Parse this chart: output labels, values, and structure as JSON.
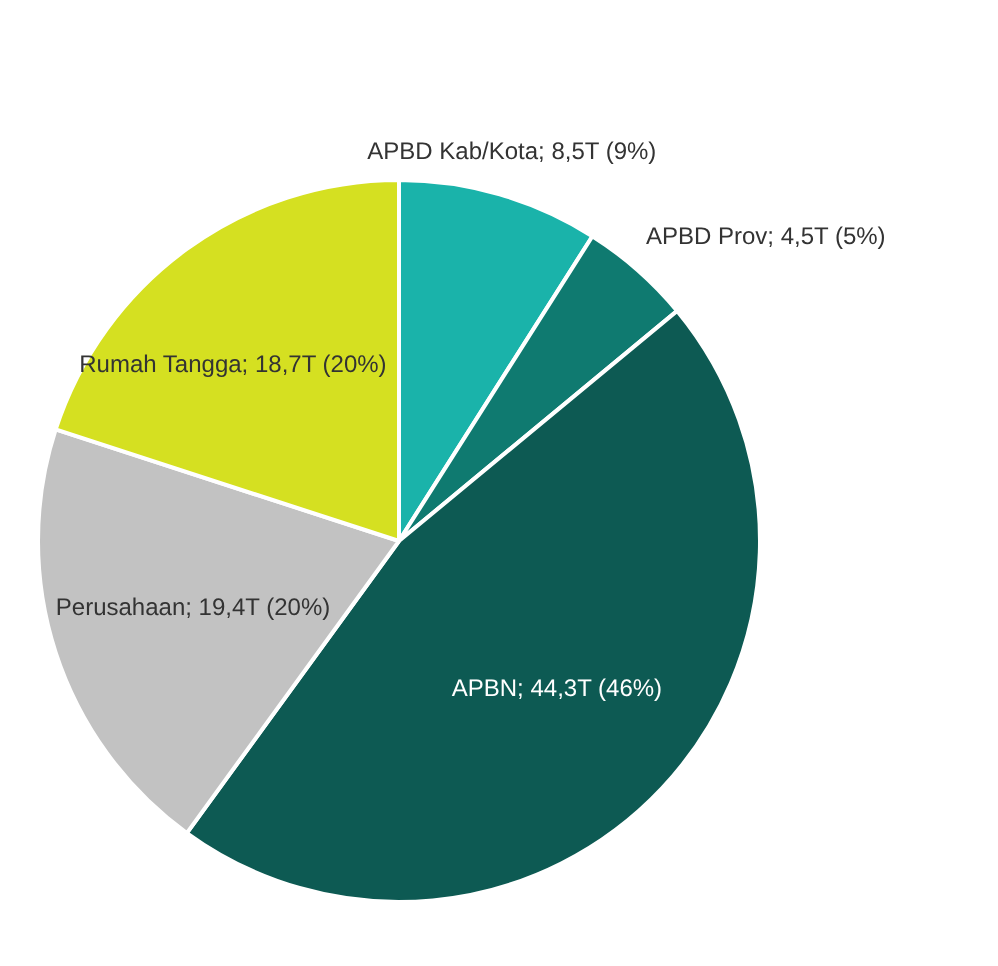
{
  "chart_data": {
    "type": "pie",
    "categories": [
      "APBD Kab/Kota",
      "APBD Prov",
      "APBN",
      "Perusahaan",
      "Rumah Tangga"
    ],
    "values": [
      9,
      5,
      46,
      20,
      20
    ],
    "value_labels": [
      "8,5T (9%)",
      "4,5T (5%)",
      "44,3T (46%)",
      "19,4T (20%)",
      "18,7T (20%)"
    ],
    "colors": [
      "#1ab3aa",
      "#0f7a70",
      "#0d5a53",
      "#c2c2c2",
      "#d5e021"
    ],
    "legend": false
  }
}
